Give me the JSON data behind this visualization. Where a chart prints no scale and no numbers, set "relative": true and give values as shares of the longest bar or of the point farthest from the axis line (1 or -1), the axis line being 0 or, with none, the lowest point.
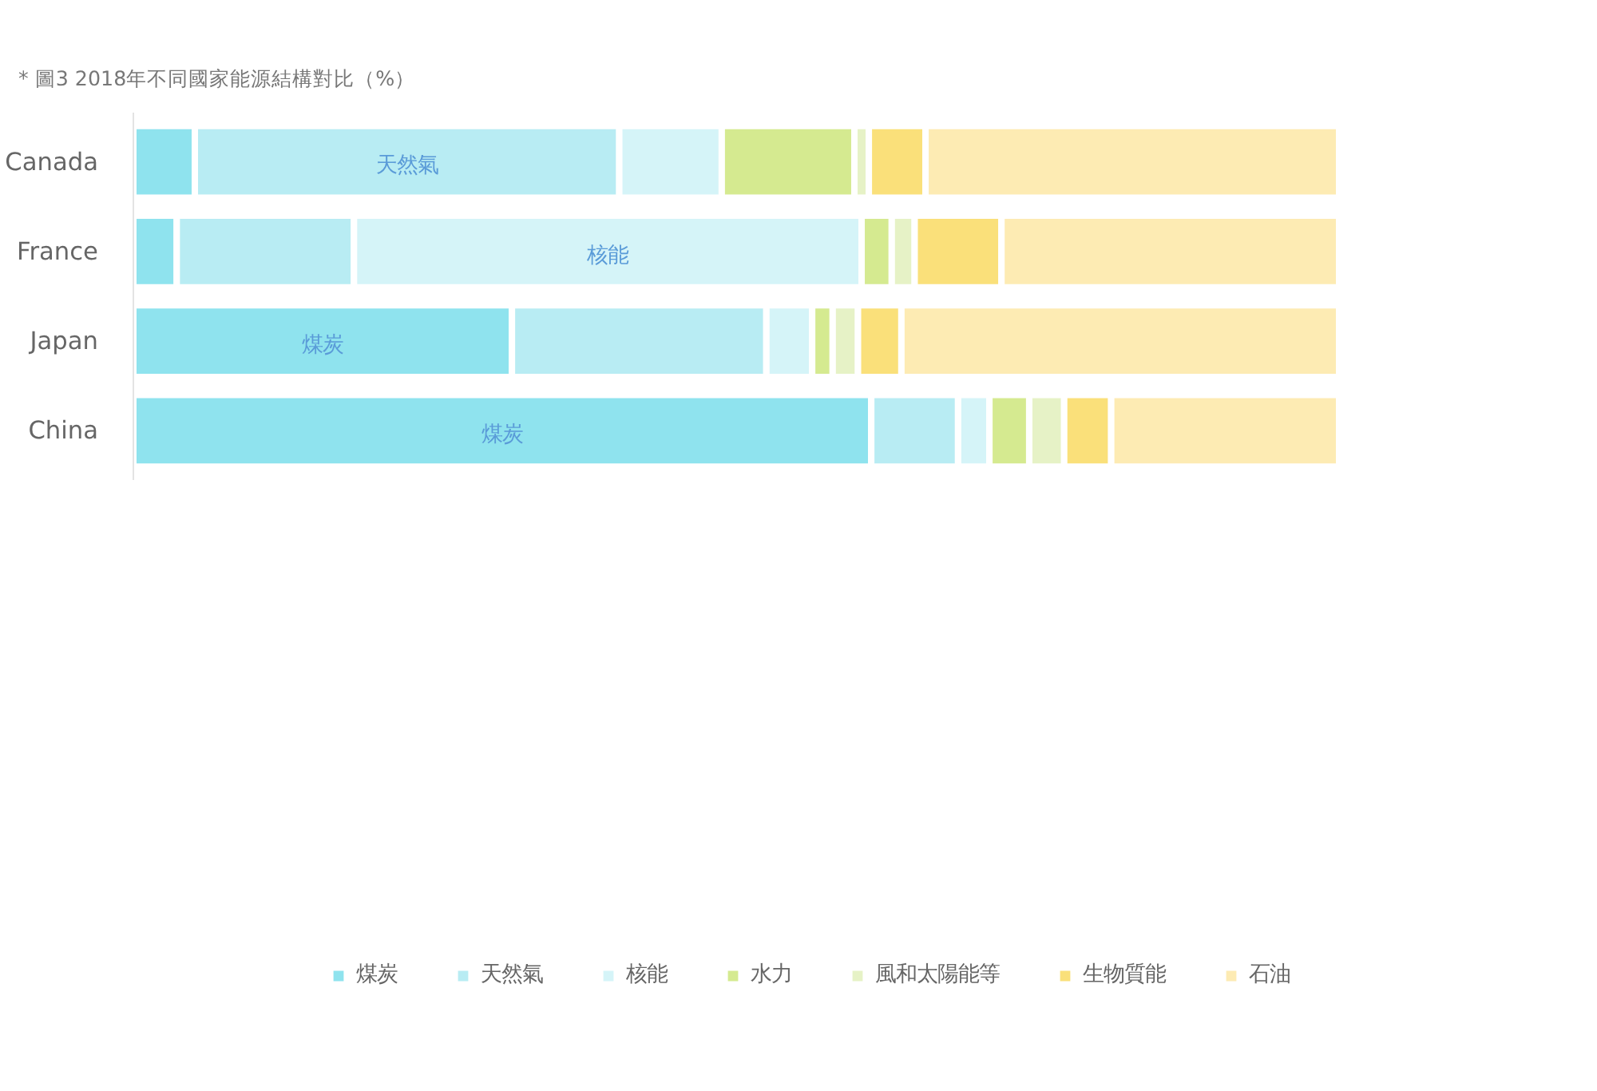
{
  "chart_data": {
    "type": "bar",
    "orientation": "horizontal",
    "stacked": true,
    "relative": true,
    "title": "* 圖3 2018年不同國家能源結構對比（%）",
    "categories": [
      "Canada",
      "France",
      "Japan",
      "China"
    ],
    "series": [
      {
        "name": "煤炭",
        "color": "#8fe3ee",
        "values": [
          0.051,
          0.036,
          0.314,
          0.612
        ]
      },
      {
        "name": "天然氣",
        "color": "#b8ecf3",
        "values": [
          0.352,
          0.147,
          0.211,
          0.072
        ]
      },
      {
        "name": "核能",
        "color": "#d5f4f8",
        "values": [
          0.085,
          0.421,
          0.038,
          0.026
        ]
      },
      {
        "name": "水力",
        "color": "#d5ea90",
        "values": [
          0.11,
          0.025,
          0.017,
          0.033
        ]
      },
      {
        "name": "風和太陽能等",
        "color": "#e6f2c6",
        "values": [
          0.012,
          0.019,
          0.021,
          0.029
        ]
      },
      {
        "name": "生物質能",
        "color": "#fae07a",
        "values": [
          0.047,
          0.072,
          0.036,
          0.039
        ]
      },
      {
        "name": "石油",
        "color": "#fdebb3",
        "values": [
          0.343,
          0.28,
          0.363,
          0.189
        ]
      }
    ],
    "annotations": [
      {
        "text": "天然氣",
        "x": 0.227,
        "y": "Canada"
      },
      {
        "text": "核能",
        "x": 0.3935,
        "y": "France"
      },
      {
        "text": "煤炭",
        "x": 0.157,
        "y": "Japan"
      },
      {
        "text": "煤炭",
        "x": 0.306,
        "y": "China"
      }
    ],
    "legend": "bottom",
    "grid": false
  }
}
